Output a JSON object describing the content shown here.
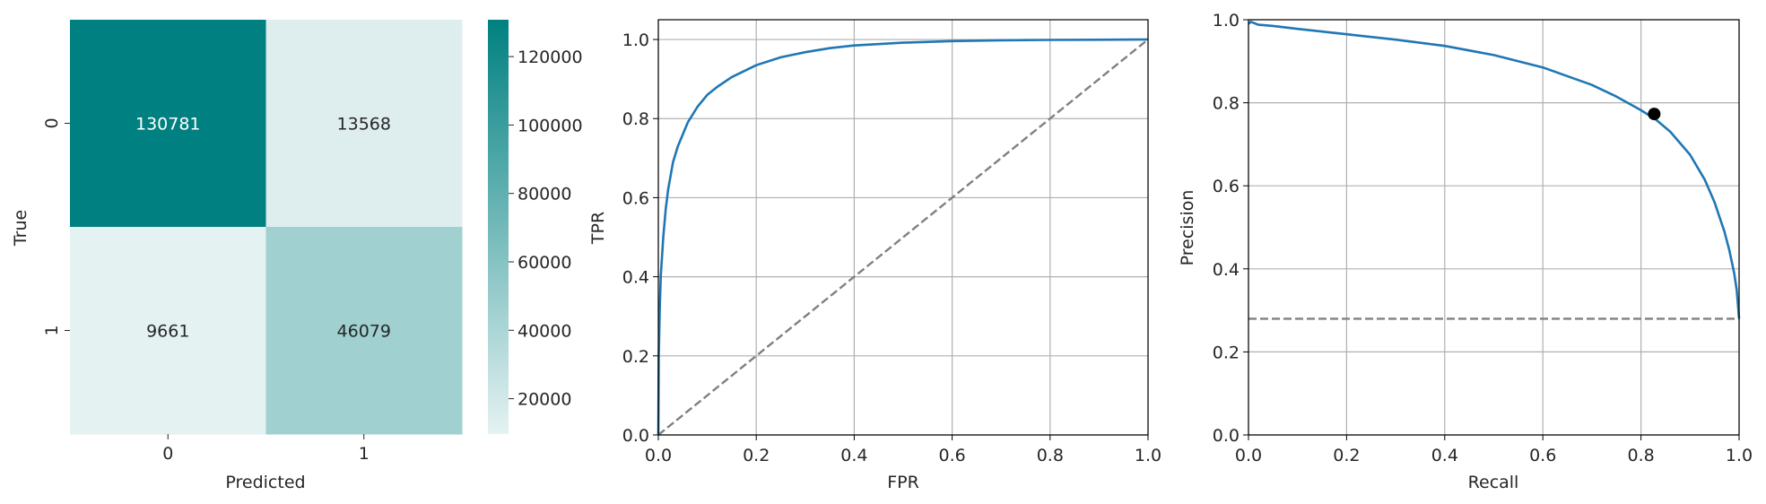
{
  "chart_data": [
    {
      "type": "heatmap",
      "xlabel": "Predicted",
      "ylabel": "True",
      "x_categories": [
        "0",
        "1"
      ],
      "y_categories": [
        "0",
        "1"
      ],
      "matrix": [
        [
          130781,
          13568
        ],
        [
          9661,
          46079
        ]
      ],
      "cell_labels": [
        [
          "130781",
          "13568"
        ],
        [
          "9661",
          "46079"
        ]
      ],
      "color_range": [
        9661,
        130781
      ],
      "colors": {
        "low": "#e5f2f2",
        "high": "#008080",
        "text_dark_cell": "#ffffff",
        "text_light_cell": "#262626"
      },
      "colorbar": {
        "ticks": [
          20000,
          40000,
          60000,
          80000,
          100000,
          120000
        ],
        "tick_labels": [
          "20000",
          "40000",
          "60000",
          "80000",
          "100000",
          "120000"
        ]
      }
    },
    {
      "type": "line",
      "xlabel": "FPR",
      "ylabel": "TPR",
      "xlim": [
        0.0,
        1.0
      ],
      "ylim": [
        0.0,
        1.05
      ],
      "xticks": [
        "0.0",
        "0.2",
        "0.4",
        "0.6",
        "0.8",
        "1.0"
      ],
      "yticks": [
        "0.0",
        "0.2",
        "0.4",
        "0.6",
        "0.8",
        "1.0"
      ],
      "grid": true,
      "series": [
        {
          "style": "solid",
          "color": "#1f77b4",
          "x": [
            0.0,
            0.001,
            0.003,
            0.005,
            0.01,
            0.015,
            0.02,
            0.03,
            0.04,
            0.05,
            0.06,
            0.08,
            0.1,
            0.12,
            0.15,
            0.2,
            0.25,
            0.3,
            0.35,
            0.4,
            0.5,
            0.6,
            0.7,
            0.8,
            0.9,
            1.0
          ],
          "y": [
            0.0,
            0.2,
            0.32,
            0.4,
            0.5,
            0.57,
            0.62,
            0.69,
            0.73,
            0.76,
            0.79,
            0.83,
            0.86,
            0.88,
            0.905,
            0.935,
            0.955,
            0.968,
            0.978,
            0.985,
            0.992,
            0.996,
            0.998,
            0.999,
            0.9995,
            1.0
          ]
        },
        {
          "style": "dashed",
          "color": "#808080",
          "x": [
            0.0,
            1.0
          ],
          "y": [
            0.0,
            1.0
          ]
        }
      ]
    },
    {
      "type": "line",
      "xlabel": "Recall",
      "ylabel": "Precision",
      "xlim": [
        0.0,
        1.0
      ],
      "ylim": [
        0.0,
        1.0
      ],
      "xticks": [
        "0.0",
        "0.2",
        "0.4",
        "0.6",
        "0.8",
        "1.0"
      ],
      "yticks": [
        "0.0",
        "0.2",
        "0.4",
        "0.6",
        "0.8",
        "1.0"
      ],
      "grid": true,
      "series": [
        {
          "style": "solid",
          "color": "#1f77b4",
          "x": [
            0.0,
            0.005,
            0.02,
            0.05,
            0.1,
            0.2,
            0.3,
            0.4,
            0.5,
            0.6,
            0.7,
            0.75,
            0.8,
            0.83,
            0.86,
            0.9,
            0.93,
            0.95,
            0.97,
            0.98,
            0.99,
            0.995,
            1.0
          ],
          "y": [
            0.99,
            0.995,
            0.988,
            0.985,
            0.978,
            0.965,
            0.952,
            0.937,
            0.915,
            0.885,
            0.843,
            0.815,
            0.782,
            0.76,
            0.73,
            0.675,
            0.615,
            0.56,
            0.49,
            0.445,
            0.39,
            0.35,
            0.28
          ]
        },
        {
          "style": "dashed",
          "color": "#808080",
          "x": [
            0.0,
            1.0
          ],
          "y": [
            0.28,
            0.28
          ]
        }
      ],
      "point": {
        "x": 0.827,
        "y": 0.773,
        "color": "#000000"
      }
    }
  ]
}
